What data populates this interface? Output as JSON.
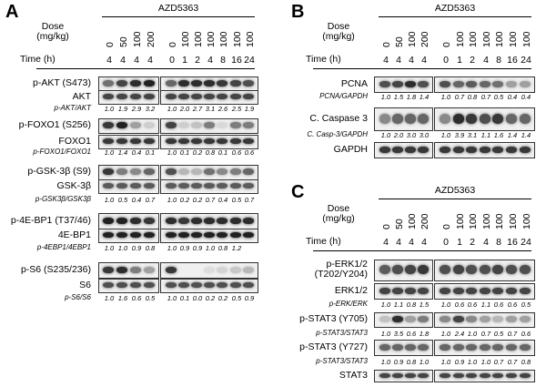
{
  "panels": [
    {
      "letter": "A",
      "drug": "AZD5363",
      "dose_label": "Dose\n(mg/kg)",
      "time_label": "Time (h)",
      "doses": [
        "0",
        "50",
        "100",
        "200",
        "0",
        "100",
        "100",
        "100",
        "100",
        "100",
        "100"
      ],
      "times": [
        "4",
        "4",
        "4",
        "4",
        "0",
        "1",
        "2",
        "4",
        "8",
        "16",
        "24"
      ],
      "rows": [
        {
          "type": "blot",
          "label": "p-AKT (S473)",
          "intensity": [
            0.55,
            0.75,
            0.85,
            0.9,
            0.6,
            0.85,
            0.85,
            0.85,
            0.8,
            0.75,
            0.7
          ]
        },
        {
          "type": "blot",
          "label": "AKT",
          "intensity": [
            0.75,
            0.75,
            0.75,
            0.75,
            0.75,
            0.75,
            0.75,
            0.75,
            0.75,
            0.75,
            0.75
          ]
        },
        {
          "type": "ratio",
          "label": "p-AKT/AKT",
          "values": [
            "1.0",
            "1.9",
            "2.9",
            "3.2",
            "1.0",
            "2.0",
            "2.7",
            "3.1",
            "2.6",
            "2.5",
            "1.9"
          ]
        },
        {
          "type": "blot",
          "label": "p-FOXO1 (S256)",
          "intensity": [
            0.8,
            0.9,
            0.35,
            0.15,
            0.75,
            0.15,
            0.2,
            0.5,
            0.1,
            0.5,
            0.5
          ]
        },
        {
          "type": "blot",
          "label": "FOXO1",
          "intensity": [
            0.8,
            0.8,
            0.8,
            0.8,
            0.8,
            0.8,
            0.8,
            0.8,
            0.8,
            0.8,
            0.8
          ]
        },
        {
          "type": "ratio",
          "label": "p-FOXO1/FOXO1",
          "values": [
            "1.0",
            "1.4",
            "0.4",
            "0.1",
            "1.0",
            "0.1",
            "0.2",
            "0.8",
            "0.1",
            "0.6",
            "0.6"
          ]
        },
        {
          "type": "blot",
          "label": "p-GSK-3β (S9)",
          "intensity": [
            0.8,
            0.5,
            0.45,
            0.6,
            0.7,
            0.25,
            0.25,
            0.55,
            0.45,
            0.5,
            0.6
          ]
        },
        {
          "type": "blot",
          "label": "GSK-3β",
          "intensity": [
            0.65,
            0.65,
            0.65,
            0.65,
            0.65,
            0.65,
            0.65,
            0.65,
            0.65,
            0.65,
            0.65
          ]
        },
        {
          "type": "ratio",
          "label": "p-GSK3β/GSK3β",
          "values": [
            "1.0",
            "0.5",
            "0.4",
            "0.7",
            "1.0",
            "0.2",
            "0.2",
            "0.7",
            "0.4",
            "0.5",
            "0.7"
          ]
        },
        {
          "type": "blot",
          "label": "p-4E-BP1 (T37/46)",
          "intensity": [
            0.9,
            0.9,
            0.85,
            0.8,
            0.85,
            0.8,
            0.85,
            0.85,
            0.85,
            0.85,
            0.85
          ]
        },
        {
          "type": "blot",
          "label": "4E-BP1",
          "intensity": [
            0.9,
            0.9,
            0.9,
            0.9,
            0.9,
            0.9,
            0.9,
            0.9,
            0.9,
            0.9,
            0.9
          ]
        },
        {
          "type": "ratio",
          "label": "p-4EBP1/4EBP1",
          "values": [
            "1.0",
            "1.0",
            "0.9",
            "0.8",
            "1.0",
            "0.9",
            "0.9",
            "1.0",
            "0.8",
            "1.2",
            ""
          ]
        },
        {
          "type": "blot",
          "label": "p-S6 (S235/236)",
          "intensity": [
            0.8,
            0.85,
            0.5,
            0.35,
            0.8,
            0.0,
            0.0,
            0.08,
            0.12,
            0.18,
            0.25
          ]
        },
        {
          "type": "blot",
          "label": "S6",
          "intensity": [
            0.7,
            0.7,
            0.7,
            0.7,
            0.7,
            0.7,
            0.7,
            0.7,
            0.7,
            0.7,
            0.7
          ]
        },
        {
          "type": "ratio",
          "label": "p-S6/S6",
          "values": [
            "1.0",
            "1.6",
            "0.6",
            "0.5",
            "1.0",
            "0.1",
            "0.0",
            "0.2",
            "0.2",
            "0.5",
            "0.9"
          ]
        }
      ]
    },
    {
      "letter": "B",
      "drug": "AZD5363",
      "dose_label": "Dose\n(mg/kg)",
      "time_label": "Time (h)",
      "doses": [
        "0",
        "50",
        "100",
        "200",
        "0",
        "100",
        "100",
        "100",
        "100",
        "100",
        "100"
      ],
      "times": [
        "4",
        "4",
        "4",
        "4",
        "0",
        "1",
        "2",
        "4",
        "8",
        "16",
        "24"
      ],
      "rows": [
        {
          "type": "blot",
          "label": "PCNA",
          "intensity": [
            0.7,
            0.75,
            0.85,
            0.7,
            0.7,
            0.6,
            0.65,
            0.6,
            0.55,
            0.35,
            0.35
          ]
        },
        {
          "type": "ratio",
          "label": "PCNA/GAPDH",
          "values": [
            "1.0",
            "1.5",
            "1.8",
            "1.4",
            "1.0",
            "0.7",
            "0.8",
            "0.7",
            "0.5",
            "0.4",
            "0.4"
          ]
        },
        {
          "type": "blot",
          "label": "C. Caspase 3",
          "intensity": [
            0.45,
            0.6,
            0.6,
            0.6,
            0.45,
            0.85,
            0.8,
            0.7,
            0.8,
            0.6,
            0.6
          ]
        },
        {
          "type": "ratio",
          "label": "C. Casp-3/GAPDH",
          "values": [
            "1.0",
            "2.0",
            "3.0",
            "3.0",
            "1.0",
            "3.9",
            "3.1",
            "1.1",
            "1.6",
            "1.4",
            "1.4"
          ]
        },
        {
          "type": "blot",
          "label": "GAPDH",
          "intensity": [
            0.8,
            0.8,
            0.8,
            0.8,
            0.8,
            0.8,
            0.8,
            0.8,
            0.8,
            0.8,
            0.8
          ]
        }
      ]
    },
    {
      "letter": "C",
      "drug": "AZD5363",
      "dose_label": "Dose\n(mg/kg)",
      "time_label": "Time (h)",
      "doses": [
        "0",
        "50",
        "100",
        "200",
        "0",
        "100",
        "100",
        "100",
        "100",
        "100",
        "100"
      ],
      "times": [
        "4",
        "4",
        "4",
        "4",
        "0",
        "1",
        "2",
        "4",
        "8",
        "16",
        "24"
      ],
      "rows": [
        {
          "type": "blot",
          "label": "p-ERK1/2\n(T202/Y204)",
          "intensity": [
            0.65,
            0.7,
            0.75,
            0.8,
            0.7,
            0.75,
            0.7,
            0.7,
            0.75,
            0.7,
            0.7
          ]
        },
        {
          "type": "blot",
          "label": "ERK1/2",
          "intensity": [
            0.75,
            0.75,
            0.75,
            0.75,
            0.75,
            0.75,
            0.75,
            0.75,
            0.75,
            0.75,
            0.75
          ]
        },
        {
          "type": "ratio",
          "label": "p-ERK/ERK",
          "values": [
            "1.0",
            "1.1",
            "0.8",
            "1.5",
            "1.0",
            "0.6",
            "0.6",
            "1.1",
            "0.6",
            "0.6",
            "0.5"
          ]
        },
        {
          "type": "blot",
          "label": "p-STAT3 (Y705)",
          "intensity": [
            0.2,
            0.85,
            0.35,
            0.5,
            0.45,
            0.75,
            0.45,
            0.35,
            0.25,
            0.35,
            0.35
          ]
        },
        {
          "type": "ratio",
          "label": "p-STAT3/STAT3",
          "values": [
            "1.0",
            "3.5",
            "0.6",
            "1.8",
            "1.0",
            "2.4",
            "1.0",
            "0.7",
            "0.5",
            "0.7",
            "0.6"
          ]
        },
        {
          "type": "blot",
          "label": "p-STAT3 (Y727)",
          "intensity": [
            0.6,
            0.6,
            0.6,
            0.6,
            0.6,
            0.6,
            0.6,
            0.6,
            0.6,
            0.6,
            0.6
          ]
        },
        {
          "type": "ratio",
          "label": "p-STAT3/STAT3",
          "values": [
            "1.0",
            "0.9",
            "0.8",
            "1.0",
            "1.0",
            "0.9",
            "1.0",
            "1.0",
            "0.7",
            "0.7",
            "0.8"
          ]
        },
        {
          "type": "blot",
          "label": "STAT3",
          "intensity": [
            0.75,
            0.75,
            0.75,
            0.75,
            0.75,
            0.75,
            0.75,
            0.75,
            0.75,
            0.75,
            0.75
          ]
        }
      ]
    }
  ]
}
